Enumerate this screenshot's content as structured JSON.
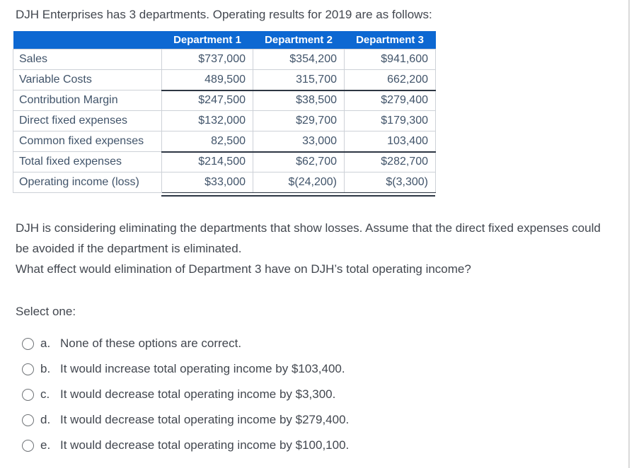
{
  "intro": "DJH Enterprises has 3 departments. Operating results for 2019 are as follows:",
  "table": {
    "corner": "",
    "columns": [
      "Department 1",
      "Department 2",
      "Department 3"
    ],
    "rows": [
      {
        "label": "Sales",
        "values": [
          "$737,000",
          "$354,200",
          "$941,600"
        ],
        "underline": "none"
      },
      {
        "label": "Variable Costs",
        "values": [
          "489,500",
          "315,700",
          "662,200"
        ],
        "underline": "single"
      },
      {
        "label": "Contribution Margin",
        "values": [
          "$247,500",
          "$38,500",
          "$279,400"
        ],
        "underline": "none"
      },
      {
        "label": "Direct fixed expenses",
        "values": [
          "$132,000",
          "$29,700",
          "$179,300"
        ],
        "underline": "none"
      },
      {
        "label": "Common fixed expenses",
        "values": [
          "82,500",
          "33,000",
          "103,400"
        ],
        "underline": "single"
      },
      {
        "label": "Total fixed expenses",
        "values": [
          "$214,500",
          "$62,700",
          "$282,700"
        ],
        "underline": "none"
      },
      {
        "label": "Operating income (loss)",
        "values": [
          "$33,000",
          "$(24,200)",
          "$(3,300)"
        ],
        "underline": "double"
      }
    ]
  },
  "question": {
    "line1": "DJH is considering eliminating the departments that show losses. Assume that the direct fixed expenses could be avoided if the department is eliminated.",
    "line2": "What effect would elimination of Department 3 have on DJH’s total operating income?",
    "select_prompt": "Select one:"
  },
  "options": [
    {
      "letter": "a.",
      "text": "None of these options are correct.",
      "selected": false
    },
    {
      "letter": "b.",
      "text": "It would increase total operating income by $103,400.",
      "selected": false
    },
    {
      "letter": "c.",
      "text": "It would decrease total operating income by $3,300.",
      "selected": false
    },
    {
      "letter": "d.",
      "text": "It would decrease total operating income by $279,400.",
      "selected": false
    },
    {
      "letter": "e.",
      "text": "It would decrease total operating income by $100,100.",
      "selected": false
    }
  ],
  "colors": {
    "header_bg": "#0d68d2",
    "header_text": "#ffffff",
    "table_text": "#41546a",
    "body_text": "#42474f",
    "grid_line": "#cdd1d7",
    "accounting_rule": "#2d3643",
    "page_edge": "#dadada",
    "radio_border": "#6f7377"
  }
}
